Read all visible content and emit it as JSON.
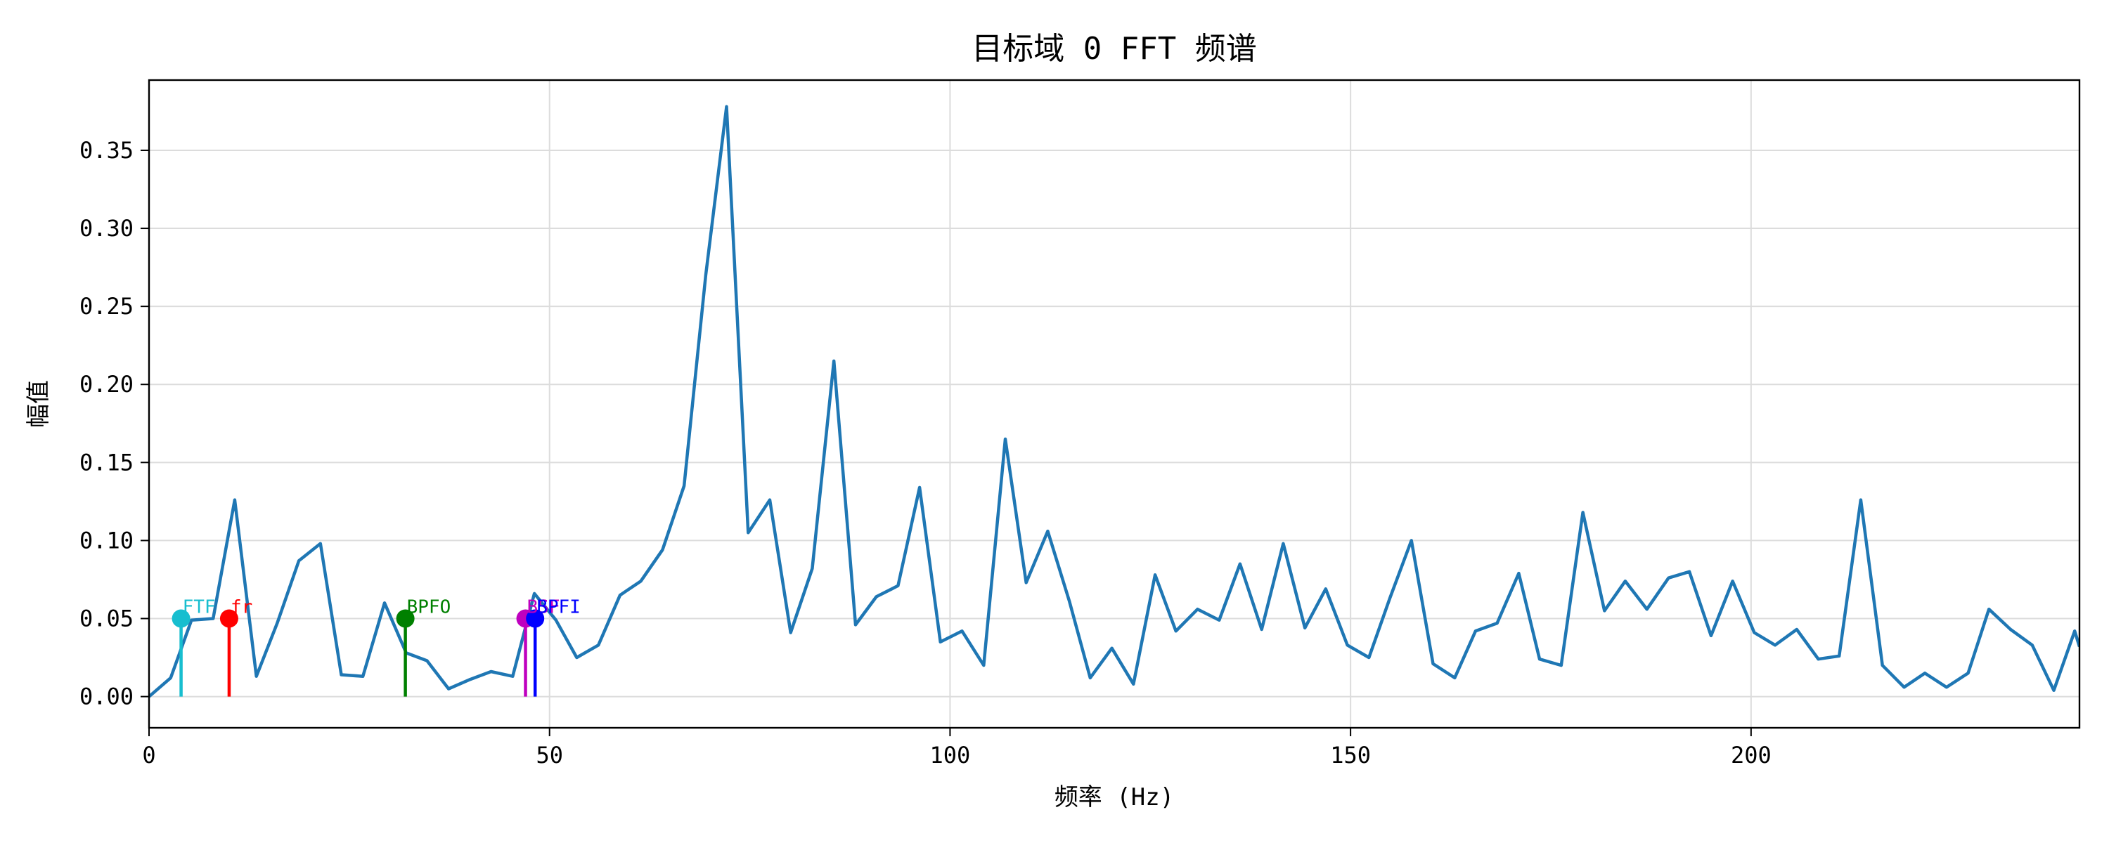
{
  "chart_data": {
    "type": "line",
    "title": "目标域 0 FFT 频谱",
    "xlabel": "频率 (Hz)",
    "ylabel": "幅值",
    "xlim": [
      0,
      241
    ],
    "ylim": [
      -0.02,
      0.395
    ],
    "xticks": [
      0,
      50,
      100,
      150,
      200
    ],
    "yticks": [
      0.0,
      0.05,
      0.1,
      0.15,
      0.2,
      0.25,
      0.3,
      0.35
    ],
    "ytick_labels": [
      "0.00",
      "0.05",
      "0.10",
      "0.15",
      "0.20",
      "0.25",
      "0.30",
      "0.35"
    ],
    "grid": true,
    "series": [
      {
        "color": "#1f77b4",
        "x": [
          0,
          2.7,
          5.3,
          8.0,
          10.7,
          13.4,
          16.0,
          18.7,
          21.4,
          24.0,
          26.7,
          29.4,
          32.1,
          34.7,
          37.4,
          40.1,
          42.7,
          45.4,
          48.1,
          50.8,
          53.4,
          56.1,
          58.8,
          61.4,
          64.1,
          66.8,
          69.5,
          72.1,
          74.8,
          77.5,
          80.1,
          82.8,
          85.5,
          88.2,
          90.8,
          93.5,
          96.2,
          98.8,
          101.5,
          104.2,
          106.9,
          109.5,
          112.2,
          114.9,
          117.5,
          120.2,
          122.9,
          125.6,
          128.2,
          130.9,
          133.6,
          136.2,
          138.9,
          141.6,
          144.3,
          146.9,
          149.6,
          152.3,
          154.9,
          157.6,
          160.3,
          163.0,
          165.6,
          168.3,
          171.0,
          173.6,
          176.3,
          179.0,
          181.7,
          184.3,
          187.0,
          189.7,
          192.3,
          195.0,
          197.7,
          200.4,
          203.0,
          205.7,
          208.4,
          211.0,
          213.7,
          216.4,
          219.1,
          221.7,
          224.4,
          227.1,
          229.7,
          232.4,
          235.1,
          237.8,
          240.4,
          241.0
        ],
        "y": [
          0.0,
          0.012,
          0.049,
          0.05,
          0.126,
          0.013,
          0.047,
          0.087,
          0.098,
          0.014,
          0.013,
          0.06,
          0.028,
          0.023,
          0.005,
          0.011,
          0.016,
          0.013,
          0.066,
          0.049,
          0.025,
          0.033,
          0.065,
          0.074,
          0.094,
          0.135,
          0.27,
          0.378,
          0.105,
          0.126,
          0.041,
          0.082,
          0.215,
          0.046,
          0.064,
          0.071,
          0.134,
          0.035,
          0.042,
          0.02,
          0.165,
          0.073,
          0.106,
          0.061,
          0.012,
          0.031,
          0.008,
          0.078,
          0.042,
          0.056,
          0.049,
          0.085,
          0.043,
          0.098,
          0.044,
          0.069,
          0.033,
          0.025,
          0.063,
          0.1,
          0.021,
          0.012,
          0.042,
          0.047,
          0.079,
          0.024,
          0.02,
          0.118,
          0.055,
          0.074,
          0.056,
          0.076,
          0.08,
          0.039,
          0.074,
          0.041,
          0.033,
          0.043,
          0.024,
          0.026,
          0.126,
          0.02,
          0.006,
          0.015,
          0.006,
          0.015,
          0.056,
          0.043,
          0.033,
          0.004,
          0.042,
          0.032
        ]
      }
    ],
    "markers": [
      {
        "label": "FTF",
        "x": 4.0,
        "y": 0.05,
        "color": "#17becf",
        "label_dx": 0
      },
      {
        "label": "fr",
        "x": 10.0,
        "y": 0.05,
        "color": "#ff0000",
        "label_dx": 0
      },
      {
        "label": "BPFO",
        "x": 32.0,
        "y": 0.05,
        "color": "#008000",
        "label_dx": 0
      },
      {
        "label": "BSF",
        "x": 47.0,
        "y": 0.05,
        "color": "#bf00bf",
        "label_dx": 0
      },
      {
        "label": "BPFI",
        "x": 48.2,
        "y": 0.05,
        "color": "#0000ff",
        "label_dx": 0
      }
    ]
  }
}
